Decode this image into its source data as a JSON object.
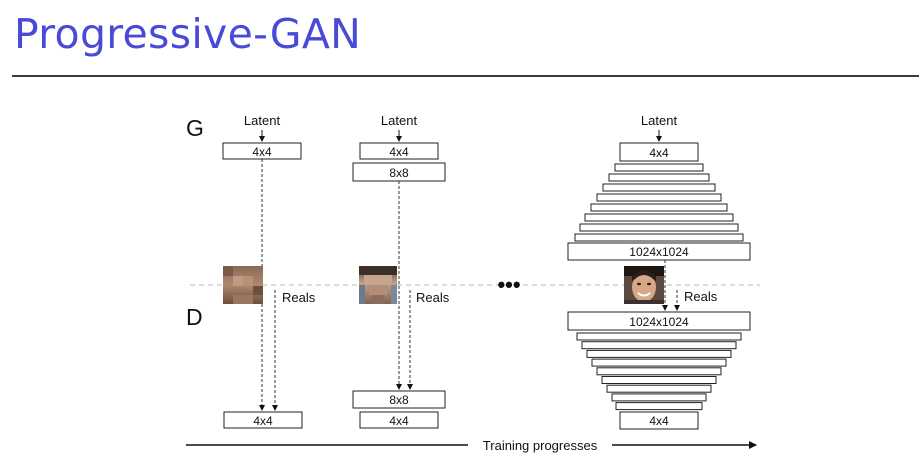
{
  "slide": {
    "title": "Progressive-GAN"
  },
  "diagram": {
    "generator_label": "G",
    "discriminator_label": "D",
    "ellipsis": "•••",
    "progress_label": "Training progresses",
    "stages": [
      {
        "latent_label": "Latent",
        "generator_blocks": [
          "4x4"
        ],
        "reals_label": "Reals",
        "discriminator_blocks": [
          "4x4"
        ]
      },
      {
        "latent_label": "Latent",
        "generator_blocks": [
          "4x4",
          "8x8"
        ],
        "reals_label": "Reals",
        "discriminator_blocks": [
          "8x8",
          "4x4"
        ]
      },
      {
        "latent_label": "Latent",
        "generator_top_block": "4x4",
        "generator_bottom_block": "1024x1024",
        "reals_label": "Reals",
        "discriminator_top_block": "1024x1024",
        "discriminator_bottom_block": "4x4"
      }
    ]
  },
  "colors": {
    "title": "#4a4ad8",
    "rule": "#3a3a3a",
    "ink": "#111111",
    "dashed": "#b8b8b8"
  }
}
